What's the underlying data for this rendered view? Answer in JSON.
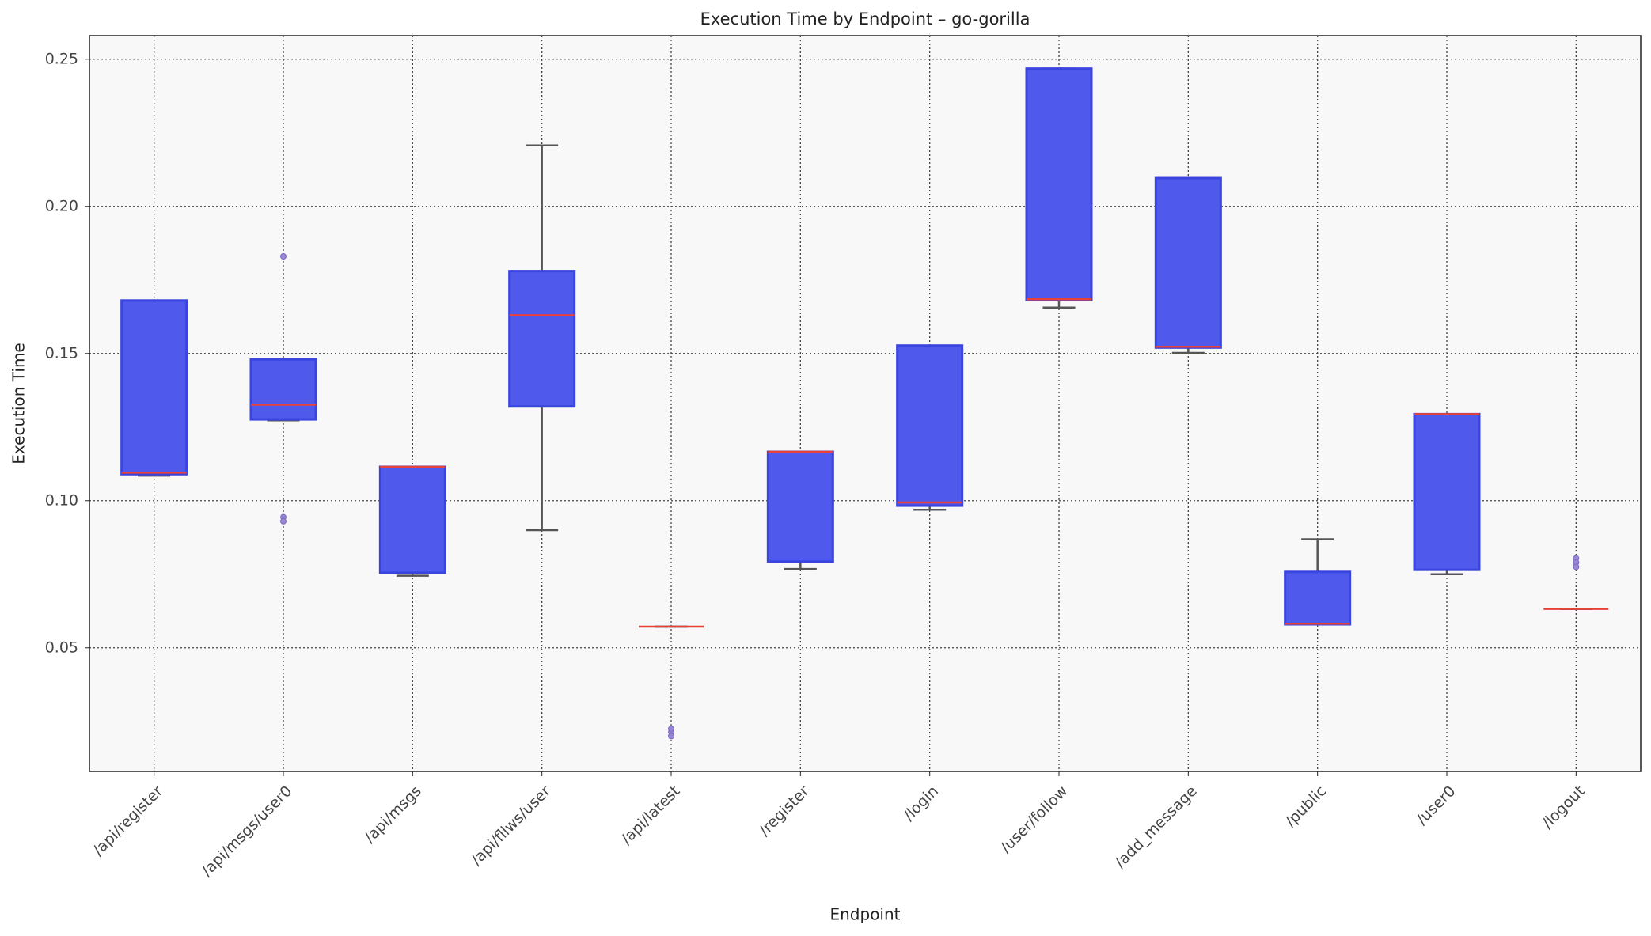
{
  "chart_data": {
    "type": "box",
    "title": "Execution Time by Endpoint – go-gorilla",
    "x_label": "Endpoint",
    "y_label": "Execution Time",
    "categories": [
      "/api/register",
      "/api/msgs/user0",
      "/api/msgs",
      "/api/fllws/user",
      "/api/latest",
      "/register",
      "/login",
      "/user/follow",
      "/add_message",
      "/public",
      "/user0",
      "/logout"
    ],
    "boxes": [
      {
        "min": 0.1085,
        "q1": 0.109,
        "median": 0.1095,
        "q3": 0.168,
        "max": 0.168,
        "fliers": []
      },
      {
        "min": 0.1273,
        "q1": 0.1276,
        "median": 0.1326,
        "q3": 0.148,
        "max": 0.148,
        "fliers": [
          0.183,
          0.0944,
          0.093
        ]
      },
      {
        "min": 0.0745,
        "q1": 0.0755,
        "median": 0.1115,
        "q3": 0.1115,
        "max": 0.1115,
        "fliers": []
      },
      {
        "min": 0.09,
        "q1": 0.132,
        "median": 0.163,
        "q3": 0.178,
        "max": 0.2207,
        "fliers": []
      },
      {
        "min": 0.0572,
        "q1": 0.0572,
        "median": 0.0572,
        "q3": 0.0572,
        "max": 0.0572,
        "fliers": [
          0.0214,
          0.02,
          0.0225
        ]
      },
      {
        "min": 0.0768,
        "q1": 0.0793,
        "median": 0.1166,
        "q3": 0.1166,
        "max": 0.1166,
        "fliers": []
      },
      {
        "min": 0.0969,
        "q1": 0.0983,
        "median": 0.0994,
        "q3": 0.1527,
        "max": 0.1527,
        "fliers": []
      },
      {
        "min": 0.1656,
        "q1": 0.1681,
        "median": 0.1684,
        "q3": 0.2468,
        "max": 0.2468,
        "fliers": []
      },
      {
        "min": 0.1502,
        "q1": 0.152,
        "median": 0.1523,
        "q3": 0.2096,
        "max": 0.2096,
        "fliers": []
      },
      {
        "min": 0.058,
        "q1": 0.058,
        "median": 0.0582,
        "q3": 0.0758,
        "max": 0.0869,
        "fliers": []
      },
      {
        "min": 0.075,
        "q1": 0.0765,
        "median": 0.1294,
        "q3": 0.1294,
        "max": 0.1294,
        "fliers": []
      },
      {
        "min": 0.0632,
        "q1": 0.0632,
        "median": 0.0632,
        "q3": 0.0632,
        "max": 0.0632,
        "fliers": [
          0.0804,
          0.079,
          0.0775
        ]
      }
    ],
    "box_color": "#4f59eb",
    "box_edge_color": "#3a45e0",
    "median_color": "#e8413a",
    "whisker_color": "#555555",
    "flier_color": "#9a86d6",
    "ylim": [
      0.008,
      0.258
    ],
    "yticks": [
      0.05,
      {
        "value": 0.1,
        "label": "0.10"
      },
      0.15,
      {
        "value": 0.2,
        "label": "0.20"
      },
      0.25
    ],
    "grid": true
  }
}
